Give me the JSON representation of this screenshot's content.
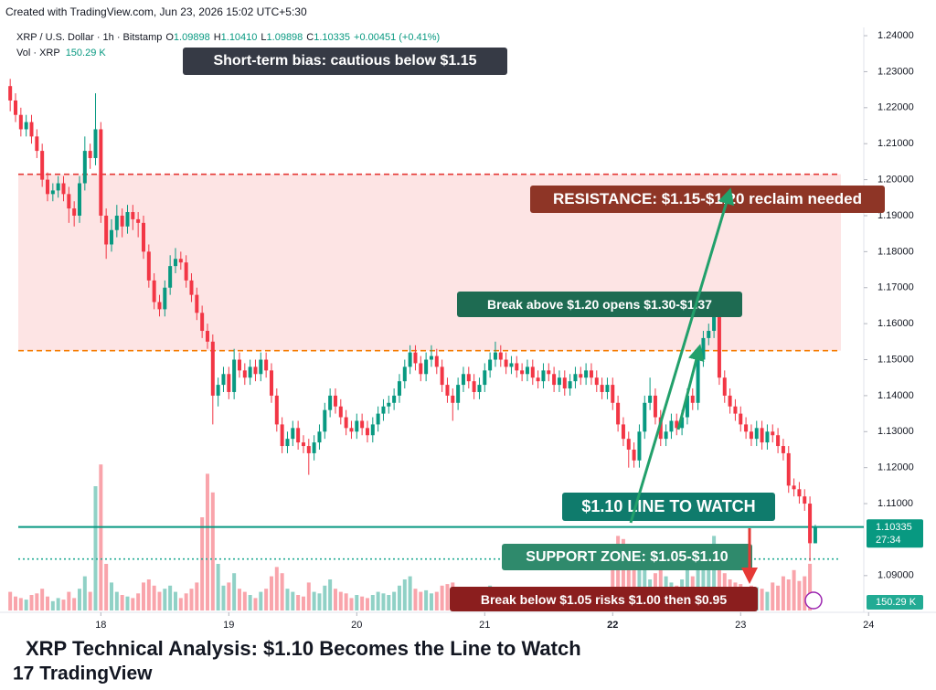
{
  "watermark": "Created with TradingView.com, Jun 23, 2026 15:02 UTC+5:30",
  "header": {
    "symbol": "XRP / U.S. Dollar · 1h · Bitstamp",
    "fields": [
      {
        "key": "O",
        "value": "1.09898"
      },
      {
        "key": "H",
        "value": "1.10410"
      },
      {
        "key": "L",
        "value": "1.09898"
      },
      {
        "key": "C",
        "value": "1.10335"
      }
    ],
    "change": "+0.00451 (+0.41%)",
    "volume_name": "Vol · XRP",
    "volume_value": "150.29 K"
  },
  "chart_data": {
    "type": "candlestick",
    "title": "XRP Technical Analysis: $1.10 Becomes the Line to Watch",
    "up_color": "#089981",
    "down_color": "#f23645",
    "ylim": [
      1.0798,
      1.2423
    ],
    "xlim": [
      -0.2,
      160.1
    ],
    "yticks": [
      {
        "value": 1.09,
        "label": "1.09000"
      },
      {
        "value": 1.11,
        "label": "1.11000"
      },
      {
        "value": 1.12,
        "label": "1.12000"
      },
      {
        "value": 1.13,
        "label": "1.13000"
      },
      {
        "value": 1.14,
        "label": "1.14000"
      },
      {
        "value": 1.15,
        "label": "1.15000"
      },
      {
        "value": 1.16,
        "label": "1.16000"
      },
      {
        "value": 1.17,
        "label": "1.17000"
      },
      {
        "value": 1.18,
        "label": "1.18000"
      },
      {
        "value": 1.19,
        "label": "1.19000"
      },
      {
        "value": 1.2,
        "label": "1.20000"
      },
      {
        "value": 1.21,
        "label": "1.21000"
      },
      {
        "value": 1.22,
        "label": "1.22000"
      },
      {
        "value": 1.23,
        "label": "1.23000"
      },
      {
        "value": 1.24,
        "label": "1.24000"
      }
    ],
    "xticks": [
      {
        "value": 17,
        "label": "18"
      },
      {
        "value": 41,
        "label": "19"
      },
      {
        "value": 65,
        "label": "20"
      },
      {
        "value": 89,
        "label": "21"
      },
      {
        "value": 113,
        "label": "22"
      },
      {
        "value": 137,
        "label": "23"
      },
      {
        "value": 161,
        "label": "24"
      }
    ],
    "zone": {
      "range": [
        1.1525,
        1.2015
      ],
      "color": "#fde4e4"
    },
    "levels": [
      {
        "value": 1.2015,
        "color": "#e53935",
        "style": "dashed"
      },
      {
        "value": 1.1525,
        "color": "#f57c00",
        "style": "dashed"
      },
      {
        "value": 1.1035,
        "color": "#089981",
        "style": "solid"
      },
      {
        "value": 1.0946,
        "color": "#22ab94",
        "style": "dotted"
      }
    ],
    "last_price": "1.10335",
    "countdown": "27:34",
    "annotations": [
      "Short-term bias: cautious below $1.15",
      "RESISTANCE: $1.15-$1.20 reclaim needed",
      "Break above $1.20 opens $1.30-$1.37",
      "$1.10 LINE TO WATCH",
      "SUPPORT ZONE: $1.05-$1.10",
      "Break below $1.05 risks $1.00 then $0.95"
    ],
    "ohlc": [
      [
        1.226,
        1.228,
        1.219,
        1.222
      ],
      [
        1.222,
        1.224,
        1.216,
        1.218
      ],
      [
        1.218,
        1.22,
        1.212,
        1.214
      ],
      [
        1.214,
        1.218,
        1.212,
        1.216
      ],
      [
        1.216,
        1.218,
        1.21,
        1.212
      ],
      [
        1.212,
        1.214,
        1.206,
        1.208
      ],
      [
        1.208,
        1.21,
        1.198,
        1.2
      ],
      [
        1.2,
        1.202,
        1.194,
        1.196
      ],
      [
        1.196,
        1.199,
        1.194,
        1.197
      ],
      [
        1.197,
        1.201,
        1.195,
        1.199
      ],
      [
        1.199,
        1.201,
        1.194,
        1.196
      ],
      [
        1.196,
        1.198,
        1.188,
        1.192
      ],
      [
        1.192,
        1.194,
        1.187,
        1.19
      ],
      [
        1.19,
        1.201,
        1.188,
        1.199
      ],
      [
        1.199,
        1.212,
        1.197,
        1.208
      ],
      [
        1.208,
        1.21,
        1.203,
        1.206
      ],
      [
        1.206,
        1.224,
        1.204,
        1.214
      ],
      [
        1.214,
        1.216,
        1.188,
        1.19
      ],
      [
        1.19,
        1.192,
        1.178,
        1.182
      ],
      [
        1.182,
        1.189,
        1.18,
        1.186
      ],
      [
        1.186,
        1.193,
        1.184,
        1.19
      ],
      [
        1.19,
        1.192,
        1.184,
        1.187
      ],
      [
        1.187,
        1.193,
        1.185,
        1.191
      ],
      [
        1.191,
        1.193,
        1.186,
        1.189
      ],
      [
        1.189,
        1.191,
        1.184,
        1.188
      ],
      [
        1.188,
        1.19,
        1.178,
        1.18
      ],
      [
        1.18,
        1.182,
        1.17,
        1.172
      ],
      [
        1.172,
        1.174,
        1.164,
        1.166
      ],
      [
        1.166,
        1.168,
        1.162,
        1.164
      ],
      [
        1.164,
        1.172,
        1.162,
        1.17
      ],
      [
        1.17,
        1.179,
        1.168,
        1.176
      ],
      [
        1.176,
        1.181,
        1.174,
        1.178
      ],
      [
        1.178,
        1.18,
        1.175,
        1.177
      ],
      [
        1.177,
        1.179,
        1.17,
        1.172
      ],
      [
        1.172,
        1.174,
        1.166,
        1.168
      ],
      [
        1.168,
        1.17,
        1.161,
        1.163
      ],
      [
        1.163,
        1.165,
        1.156,
        1.158
      ],
      [
        1.158,
        1.16,
        1.153,
        1.155
      ],
      [
        1.155,
        1.157,
        1.132,
        1.14
      ],
      [
        1.14,
        1.145,
        1.137,
        1.143
      ],
      [
        1.143,
        1.148,
        1.141,
        1.146
      ],
      [
        1.146,
        1.148,
        1.139,
        1.141
      ],
      [
        1.141,
        1.153,
        1.139,
        1.15
      ],
      [
        1.15,
        1.152,
        1.145,
        1.147
      ],
      [
        1.147,
        1.149,
        1.143,
        1.145
      ],
      [
        1.145,
        1.15,
        1.143,
        1.148
      ],
      [
        1.148,
        1.15,
        1.144,
        1.146
      ],
      [
        1.146,
        1.152,
        1.144,
        1.15
      ],
      [
        1.15,
        1.152,
        1.145,
        1.147
      ],
      [
        1.147,
        1.149,
        1.138,
        1.14
      ],
      [
        1.14,
        1.142,
        1.13,
        1.132
      ],
      [
        1.132,
        1.134,
        1.124,
        1.126
      ],
      [
        1.126,
        1.13,
        1.124,
        1.128
      ],
      [
        1.128,
        1.133,
        1.126,
        1.131
      ],
      [
        1.131,
        1.133,
        1.125,
        1.127
      ],
      [
        1.127,
        1.129,
        1.124,
        1.126
      ],
      [
        1.126,
        1.128,
        1.118,
        1.124
      ],
      [
        1.124,
        1.129,
        1.122,
        1.127
      ],
      [
        1.127,
        1.132,
        1.125,
        1.13
      ],
      [
        1.13,
        1.138,
        1.128,
        1.136
      ],
      [
        1.136,
        1.142,
        1.134,
        1.14
      ],
      [
        1.14,
        1.142,
        1.135,
        1.137
      ],
      [
        1.137,
        1.139,
        1.132,
        1.134
      ],
      [
        1.134,
        1.136,
        1.129,
        1.131
      ],
      [
        1.131,
        1.133,
        1.128,
        1.13
      ],
      [
        1.13,
        1.135,
        1.128,
        1.133
      ],
      [
        1.133,
        1.135,
        1.129,
        1.131
      ],
      [
        1.131,
        1.133,
        1.127,
        1.129
      ],
      [
        1.129,
        1.134,
        1.127,
        1.132
      ],
      [
        1.132,
        1.137,
        1.13,
        1.135
      ],
      [
        1.135,
        1.139,
        1.133,
        1.137
      ],
      [
        1.137,
        1.14,
        1.135,
        1.138
      ],
      [
        1.138,
        1.142,
        1.136,
        1.14
      ],
      [
        1.14,
        1.146,
        1.138,
        1.144
      ],
      [
        1.144,
        1.15,
        1.142,
        1.148
      ],
      [
        1.148,
        1.154,
        1.146,
        1.152
      ],
      [
        1.152,
        1.154,
        1.147,
        1.149
      ],
      [
        1.149,
        1.151,
        1.144,
        1.146
      ],
      [
        1.146,
        1.152,
        1.144,
        1.15
      ],
      [
        1.15,
        1.154,
        1.148,
        1.151
      ],
      [
        1.151,
        1.153,
        1.146,
        1.148
      ],
      [
        1.148,
        1.15,
        1.141,
        1.143
      ],
      [
        1.143,
        1.145,
        1.138,
        1.14
      ],
      [
        1.14,
        1.142,
        1.133,
        1.138
      ],
      [
        1.138,
        1.145,
        1.136,
        1.143
      ],
      [
        1.143,
        1.148,
        1.141,
        1.146
      ],
      [
        1.146,
        1.148,
        1.142,
        1.144
      ],
      [
        1.144,
        1.146,
        1.139,
        1.141
      ],
      [
        1.141,
        1.145,
        1.139,
        1.143
      ],
      [
        1.143,
        1.149,
        1.141,
        1.147
      ],
      [
        1.147,
        1.152,
        1.145,
        1.15
      ],
      [
        1.15,
        1.155,
        1.148,
        1.152
      ],
      [
        1.152,
        1.154,
        1.148,
        1.15
      ],
      [
        1.15,
        1.152,
        1.146,
        1.148
      ],
      [
        1.148,
        1.151,
        1.146,
        1.149
      ],
      [
        1.149,
        1.151,
        1.145,
        1.147
      ],
      [
        1.147,
        1.149,
        1.144,
        1.146
      ],
      [
        1.146,
        1.15,
        1.144,
        1.148
      ],
      [
        1.148,
        1.15,
        1.143,
        1.145
      ],
      [
        1.145,
        1.147,
        1.142,
        1.144
      ],
      [
        1.144,
        1.149,
        1.142,
        1.147
      ],
      [
        1.147,
        1.149,
        1.144,
        1.146
      ],
      [
        1.146,
        1.148,
        1.141,
        1.143
      ],
      [
        1.143,
        1.147,
        1.141,
        1.145
      ],
      [
        1.145,
        1.147,
        1.14,
        1.142
      ],
      [
        1.142,
        1.146,
        1.14,
        1.144
      ],
      [
        1.144,
        1.148,
        1.142,
        1.146
      ],
      [
        1.146,
        1.148,
        1.143,
        1.145
      ],
      [
        1.145,
        1.149,
        1.143,
        1.147
      ],
      [
        1.147,
        1.149,
        1.143,
        1.145
      ],
      [
        1.145,
        1.147,
        1.141,
        1.143
      ],
      [
        1.143,
        1.145,
        1.139,
        1.141
      ],
      [
        1.141,
        1.145,
        1.139,
        1.143
      ],
      [
        1.143,
        1.145,
        1.136,
        1.138
      ],
      [
        1.138,
        1.14,
        1.13,
        1.132
      ],
      [
        1.132,
        1.134,
        1.126,
        1.128
      ],
      [
        1.128,
        1.13,
        1.12,
        1.125
      ],
      [
        1.125,
        1.127,
        1.12,
        1.122
      ],
      [
        1.122,
        1.132,
        1.12,
        1.13
      ],
      [
        1.13,
        1.14,
        1.128,
        1.138
      ],
      [
        1.138,
        1.145,
        1.136,
        1.14
      ],
      [
        1.14,
        1.142,
        1.132,
        1.134
      ],
      [
        1.134,
        1.136,
        1.126,
        1.128
      ],
      [
        1.128,
        1.132,
        1.126,
        1.13
      ],
      [
        1.13,
        1.135,
        1.128,
        1.133
      ],
      [
        1.133,
        1.135,
        1.129,
        1.131
      ],
      [
        1.131,
        1.136,
        1.129,
        1.134
      ],
      [
        1.134,
        1.142,
        1.132,
        1.14
      ],
      [
        1.14,
        1.142,
        1.136,
        1.138
      ],
      [
        1.138,
        1.152,
        1.136,
        1.15
      ],
      [
        1.15,
        1.158,
        1.148,
        1.156
      ],
      [
        1.156,
        1.16,
        1.154,
        1.158
      ],
      [
        1.158,
        1.164,
        1.156,
        1.162
      ],
      [
        1.162,
        1.164,
        1.143,
        1.145
      ],
      [
        1.145,
        1.147,
        1.138,
        1.14
      ],
      [
        1.14,
        1.142,
        1.135,
        1.137
      ],
      [
        1.137,
        1.139,
        1.133,
        1.135
      ],
      [
        1.135,
        1.137,
        1.13,
        1.132
      ],
      [
        1.132,
        1.134,
        1.128,
        1.13
      ],
      [
        1.13,
        1.132,
        1.126,
        1.128
      ],
      [
        1.128,
        1.133,
        1.126,
        1.131
      ],
      [
        1.131,
        1.133,
        1.125,
        1.127
      ],
      [
        1.127,
        1.132,
        1.125,
        1.13
      ],
      [
        1.13,
        1.132,
        1.127,
        1.129
      ],
      [
        1.129,
        1.131,
        1.124,
        1.126
      ],
      [
        1.126,
        1.128,
        1.122,
        1.124
      ],
      [
        1.124,
        1.126,
        1.113,
        1.115
      ],
      [
        1.115,
        1.117,
        1.112,
        1.114
      ],
      [
        1.114,
        1.116,
        1.11,
        1.112
      ],
      [
        1.112,
        1.114,
        1.108,
        1.11
      ],
      [
        1.11,
        1.112,
        1.094,
        1.099
      ],
      [
        1.09898,
        1.1041,
        1.09898,
        1.10335
      ]
    ],
    "volume": [
      60,
      45,
      40,
      35,
      50,
      55,
      70,
      45,
      30,
      40,
      35,
      60,
      40,
      70,
      110,
      60,
      400,
      470,
      150,
      90,
      60,
      50,
      45,
      40,
      55,
      90,
      100,
      80,
      60,
      70,
      80,
      60,
      40,
      55,
      70,
      90,
      300,
      440,
      380,
      150,
      80,
      90,
      120,
      70,
      60,
      50,
      40,
      60,
      70,
      110,
      140,
      120,
      70,
      60,
      50,
      45,
      90,
      60,
      55,
      80,
      100,
      70,
      60,
      55,
      40,
      50,
      45,
      40,
      50,
      60,
      55,
      50,
      60,
      80,
      100,
      110,
      70,
      60,
      65,
      55,
      60,
      80,
      85,
      90,
      70,
      65,
      55,
      60,
      50,
      70,
      80,
      60,
      50,
      45,
      40,
      45,
      40,
      50,
      55,
      40,
      45,
      40,
      55,
      45,
      50,
      40,
      55,
      45,
      40,
      50,
      55,
      60,
      65,
      200,
      240,
      230,
      210,
      190,
      200,
      170,
      100,
      120,
      160,
      110,
      90,
      80,
      100,
      150,
      110,
      200,
      160,
      150,
      240,
      210,
      120,
      100,
      90,
      85,
      70,
      80,
      75,
      70,
      60,
      90,
      80,
      110,
      100,
      130,
      95,
      110,
      150.29
    ]
  }
}
